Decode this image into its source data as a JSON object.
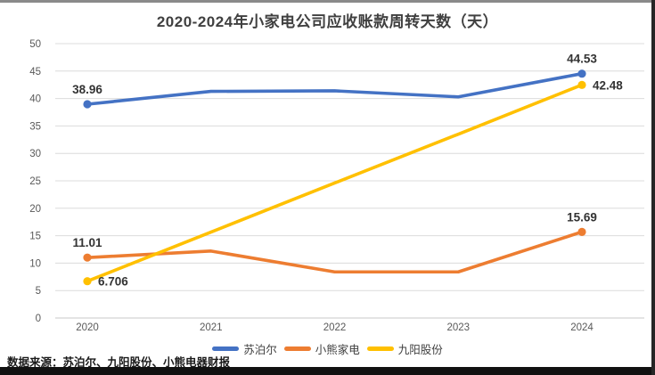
{
  "chart_data": {
    "type": "line",
    "title": "2020-2024年小家电公司应收账款周转天数（天）",
    "categories": [
      "2020",
      "2021",
      "2022",
      "2023",
      "2024"
    ],
    "series": [
      {
        "name": "苏泊尔",
        "color": "#4472C4",
        "values": [
          38.96,
          41.3,
          41.4,
          40.3,
          44.53
        ],
        "marker_indices": [
          0,
          4
        ],
        "point_labels": [
          {
            "index": 0,
            "text": "38.96",
            "position": "above"
          },
          {
            "index": 4,
            "text": "44.53",
            "position": "above"
          }
        ]
      },
      {
        "name": "小熊家电",
        "color": "#ED7D31",
        "values": [
          11.01,
          12.2,
          8.4,
          8.4,
          15.69
        ],
        "marker_indices": [
          0,
          4
        ],
        "point_labels": [
          {
            "index": 0,
            "text": "11.01",
            "position": "above"
          },
          {
            "index": 4,
            "text": "15.69",
            "position": "above"
          }
        ]
      },
      {
        "name": "九阳股份",
        "color": "#FFC000",
        "values": [
          6.706,
          15.65,
          24.6,
          33.5,
          42.48
        ],
        "marker_indices": [
          0,
          4
        ],
        "point_labels": [
          {
            "index": 0,
            "text": "6.706",
            "position": "right"
          },
          {
            "index": 4,
            "text": "42.48",
            "position": "right"
          }
        ]
      }
    ],
    "ylim": [
      0,
      50
    ],
    "ytick_step": 5,
    "grid": true,
    "legend_position": "bottom"
  },
  "source_note": "数据来源：苏泊尔、九阳股份、小熊电器财报",
  "colors": {
    "grid": "#DCDCDC",
    "axis_line": "#C8C8C8",
    "axis_text": "#595959",
    "label_text": "#333333"
  }
}
